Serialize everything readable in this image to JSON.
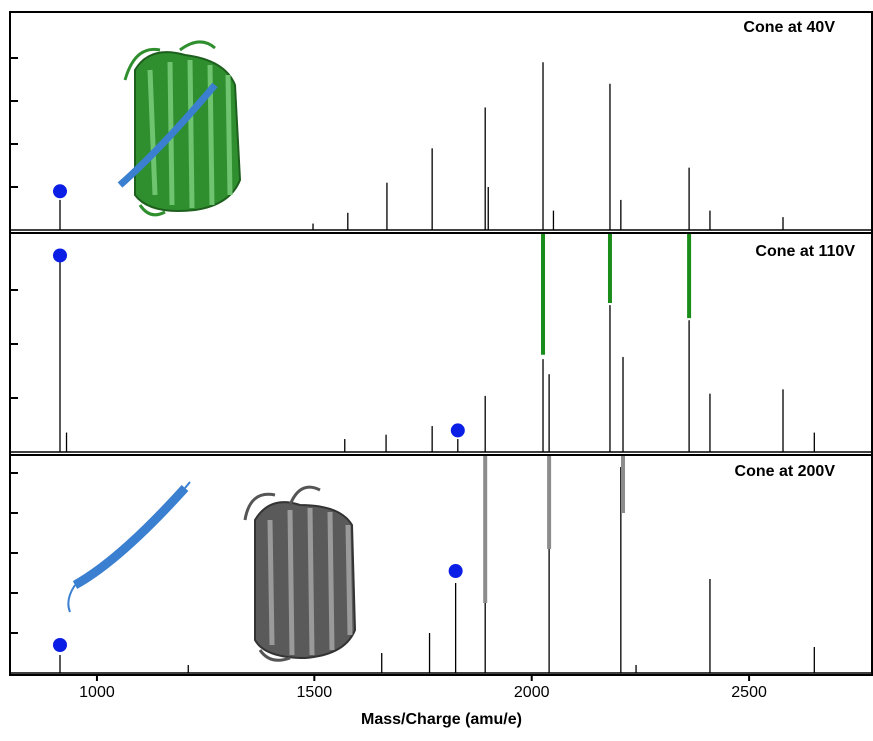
{
  "chart_data": [
    {
      "type": "stem",
      "title": "Cone at 40V",
      "color": "#000000",
      "x": [
        915,
        1497,
        1577,
        1667,
        1771,
        1893,
        1900,
        2026,
        2050,
        2180,
        2205,
        2362,
        2410,
        2578
      ],
      "values": [
        14,
        3,
        8,
        22,
        38,
        57,
        20,
        78,
        9,
        68,
        14,
        29,
        9,
        6
      ],
      "xlim": [
        800,
        2785
      ],
      "ylim": [
        0,
        100
      ],
      "yticks": [
        20,
        40,
        60,
        80
      ],
      "markers": {
        "color": "#0a1ee6",
        "x": [
          915
        ],
        "values": [
          18
        ]
      }
    },
    {
      "type": "stem",
      "title": "Cone at 110V",
      "color": "#000000",
      "x": [
        915,
        930,
        1570,
        1665,
        1771,
        1830,
        1893,
        2026,
        2040,
        2180,
        2210,
        2362,
        2410,
        2578,
        2650
      ],
      "values": [
        91,
        9,
        6,
        8,
        12,
        6,
        26,
        43,
        36,
        68,
        44,
        61,
        27,
        29,
        9
      ],
      "xlim": [
        800,
        2785
      ],
      "ylim": [
        0,
        100
      ],
      "yticks": [
        25,
        50,
        75
      ],
      "markers": {
        "color": "#0a1ee6",
        "x": [
          915,
          1830
        ],
        "values": [
          91,
          10
        ]
      },
      "guides": {
        "color": "#1a8c1a",
        "x": [
          2026,
          2180,
          2362
        ],
        "values": [
          45,
          69,
          62
        ]
      }
    },
    {
      "type": "stem",
      "title": "Cone at 200V",
      "color": "#000000",
      "x": [
        915,
        1210,
        1655,
        1765,
        1825,
        1893,
        2040,
        2205,
        2240,
        2410,
        2650
      ],
      "values": [
        9,
        4,
        10,
        20,
        45,
        36,
        62,
        103,
        4,
        47,
        13
      ],
      "xlim": [
        800,
        2785
      ],
      "ylim": [
        0,
        108
      ],
      "yticks": [
        20,
        40,
        60,
        80,
        100
      ],
      "markers": {
        "color": "#0a1ee6",
        "x": [
          915,
          1825
        ],
        "values": [
          14,
          51
        ]
      },
      "guides": {
        "color": "#8c8c8c",
        "x": [
          1893,
          2040,
          2210
        ],
        "values": [
          35,
          62,
          80
        ]
      },
      "xticks": [
        1000,
        1500,
        2000,
        2500
      ],
      "x_label": "Mass/Charge (amu/e)"
    }
  ]
}
